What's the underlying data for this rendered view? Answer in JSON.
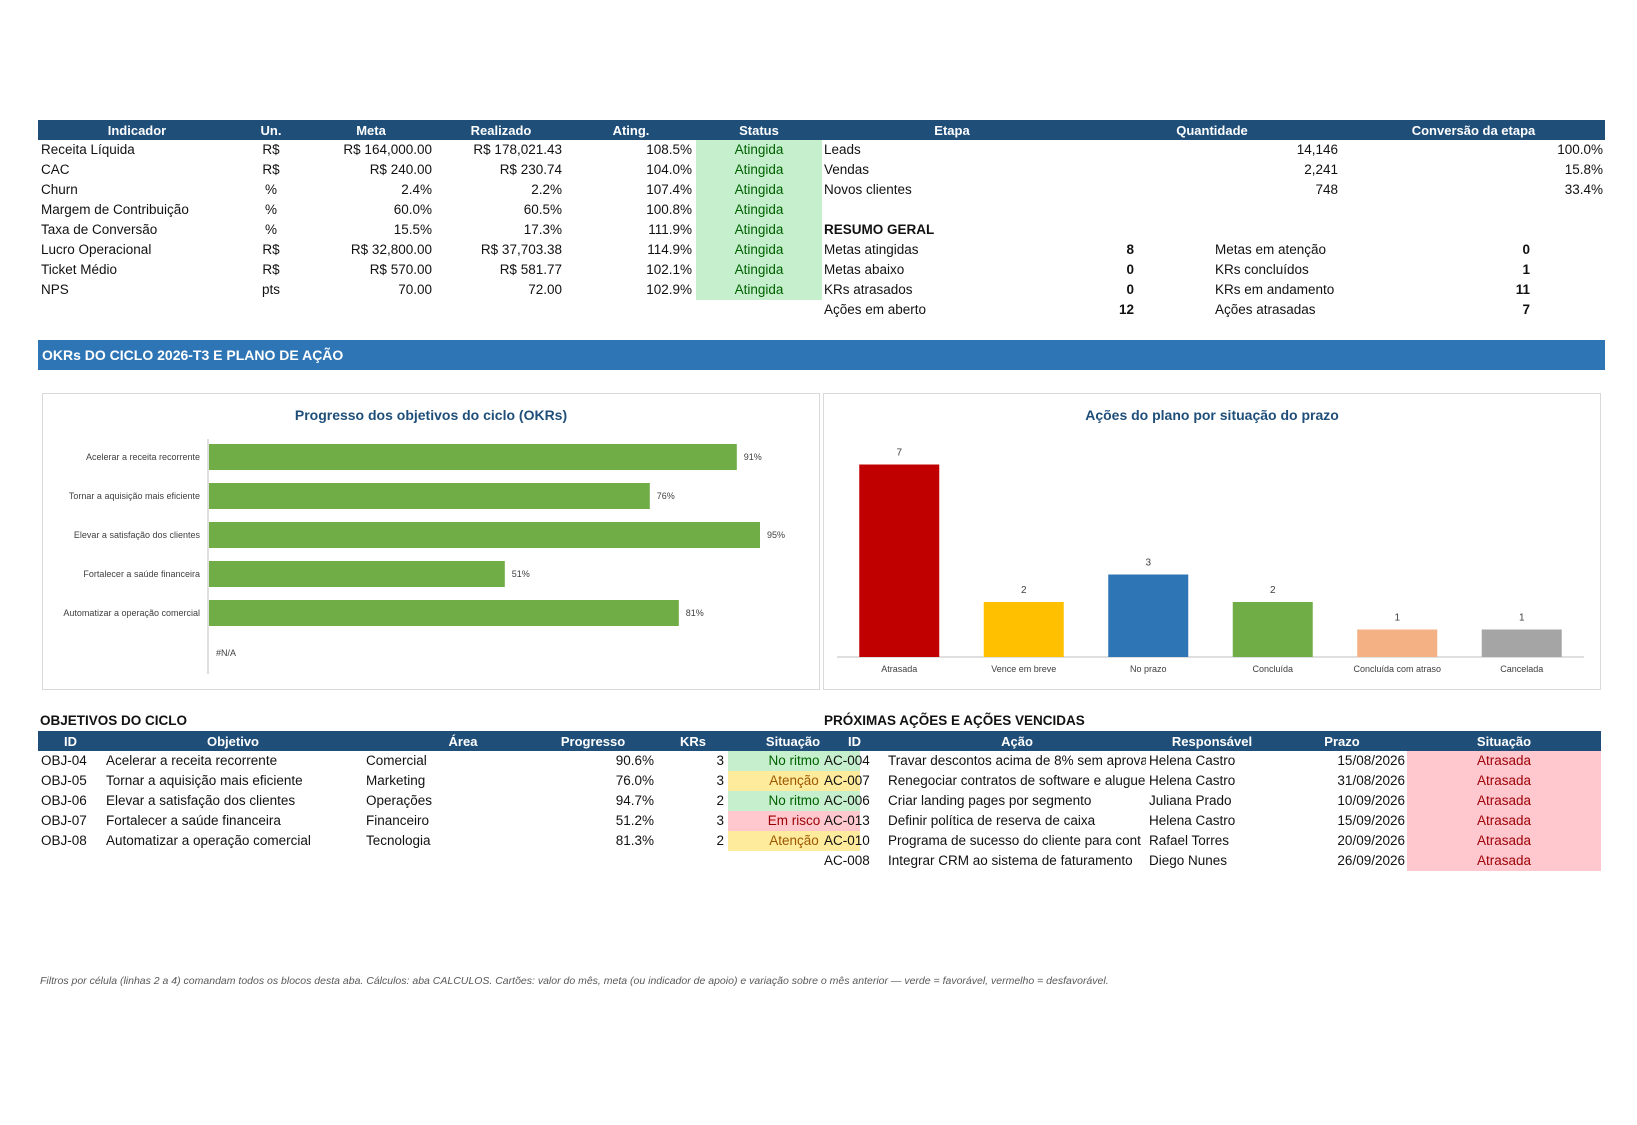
{
  "kpi_table": {
    "headers": [
      "Indicador",
      "Un.",
      "Meta",
      "Realizado",
      "Ating.",
      "Status"
    ],
    "rows": [
      {
        "indicador": "Receita Líquida",
        "un": "R$",
        "meta": "R$ 164,000.00",
        "realizado": "R$ 178,021.43",
        "ating": "108.5%",
        "status": "Atingida"
      },
      {
        "indicador": "CAC",
        "un": "R$",
        "meta": "R$ 240.00",
        "realizado": "R$ 230.74",
        "ating": "104.0%",
        "status": "Atingida"
      },
      {
        "indicador": "Churn",
        "un": "%",
        "meta": "2.4%",
        "realizado": "2.2%",
        "ating": "107.4%",
        "status": "Atingida"
      },
      {
        "indicador": "Margem de Contribuição",
        "un": "%",
        "meta": "60.0%",
        "realizado": "60.5%",
        "ating": "100.8%",
        "status": "Atingida"
      },
      {
        "indicador": "Taxa de Conversão",
        "un": "%",
        "meta": "15.5%",
        "realizado": "17.3%",
        "ating": "111.9%",
        "status": "Atingida"
      },
      {
        "indicador": "Lucro Operacional",
        "un": "R$",
        "meta": "R$ 32,800.00",
        "realizado": "R$ 37,703.38",
        "ating": "114.9%",
        "status": "Atingida"
      },
      {
        "indicador": "Ticket Médio",
        "un": "R$",
        "meta": "R$ 570.00",
        "realizado": "R$ 581.77",
        "ating": "102.1%",
        "status": "Atingida"
      },
      {
        "indicador": "NPS",
        "un": "pts",
        "meta": "70.00",
        "realizado": "72.00",
        "ating": "102.9%",
        "status": "Atingida"
      }
    ]
  },
  "funnel": {
    "headers": [
      "Etapa",
      "Quantidade",
      "Conversão da etapa"
    ],
    "rows": [
      {
        "etapa": "Leads",
        "quantidade": "14,146",
        "conversao": "100.0%"
      },
      {
        "etapa": "Vendas",
        "quantidade": "2,241",
        "conversao": "15.8%"
      },
      {
        "etapa": "Novos clientes",
        "quantidade": "748",
        "conversao": "33.4%"
      }
    ]
  },
  "summary": {
    "title": "RESUMO GERAL",
    "left": [
      {
        "label": "Metas atingidas",
        "value": "8"
      },
      {
        "label": "Metas abaixo",
        "value": "0"
      },
      {
        "label": "KRs atrasados",
        "value": "0"
      },
      {
        "label": "Ações em aberto",
        "value": "12"
      }
    ],
    "right": [
      {
        "label": "Metas em atenção",
        "value": "0"
      },
      {
        "label": "KRs concluídos",
        "value": "1"
      },
      {
        "label": "KRs em andamento",
        "value": "11"
      },
      {
        "label": "Ações atrasadas",
        "value": "7"
      }
    ]
  },
  "band_title": "OKRs DO CICLO 2026-T3 E PLANO DE AÇÃO",
  "colors": {
    "header_blue": "#1f4e79",
    "band_blue": "#2e75b6",
    "bar_green": "#70ad47",
    "atrasada": "#c00000",
    "vence": "#ffc000",
    "no_prazo": "#2e75b6",
    "concluida": "#70ad47",
    "concluida_atraso": "#f4b183",
    "cancelada": "#a5a5a5"
  },
  "chart_data": [
    {
      "type": "bar",
      "orientation": "horizontal",
      "title": "Progresso dos objetivos do ciclo (OKRs)",
      "categories": [
        "Acelerar a receita recorrente",
        "Tornar a aquisição mais eficiente",
        "Elevar a satisfação dos clientes",
        "Fortalecer a saúde financeira",
        "Automatizar a operação comercial",
        "#N/A"
      ],
      "values": [
        91,
        76,
        95,
        51,
        81,
        null
      ],
      "value_labels": [
        "91%",
        "76%",
        "95%",
        "51%",
        "81%",
        ""
      ],
      "xlim": [
        0,
        100
      ],
      "grid": false
    },
    {
      "type": "bar",
      "title": "Ações do plano por situação do prazo",
      "categories": [
        "Atrasada",
        "Vence em breve",
        "No prazo",
        "Concluída",
        "Concluída com atraso",
        "Cancelada"
      ],
      "values": [
        7,
        2,
        3,
        2,
        1,
        1
      ],
      "colors": [
        "#c00000",
        "#ffc000",
        "#2e75b6",
        "#70ad47",
        "#f4b183",
        "#a5a5a5"
      ],
      "ylim": [
        0,
        8
      ],
      "grid": false
    }
  ],
  "objectives": {
    "title": "OBJETIVOS DO CICLO",
    "headers": [
      "ID",
      "Objetivo",
      "Área",
      "Progresso",
      "KRs",
      "Situação"
    ],
    "rows": [
      {
        "id": "OBJ-04",
        "objetivo": "Acelerar a receita recorrente",
        "area": "Comercial",
        "progresso": "90.6%",
        "krs": "3",
        "situacao": "No ritmo",
        "tone": "green"
      },
      {
        "id": "OBJ-05",
        "objetivo": "Tornar a aquisição mais eficiente",
        "area": "Marketing",
        "progresso": "76.0%",
        "krs": "3",
        "situacao": "Atenção",
        "tone": "yellow"
      },
      {
        "id": "OBJ-06",
        "objetivo": "Elevar a satisfação dos clientes",
        "area": "Operações",
        "progresso": "94.7%",
        "krs": "2",
        "situacao": "No ritmo",
        "tone": "green"
      },
      {
        "id": "OBJ-07",
        "objetivo": "Fortalecer a saúde financeira",
        "area": "Financeiro",
        "progresso": "51.2%",
        "krs": "3",
        "situacao": "Em risco",
        "tone": "red"
      },
      {
        "id": "OBJ-08",
        "objetivo": "Automatizar a operação comercial",
        "area": "Tecnologia",
        "progresso": "81.3%",
        "krs": "2",
        "situacao": "Atenção",
        "tone": "yellow"
      }
    ]
  },
  "actions": {
    "title": "PRÓXIMAS AÇÕES E AÇÕES VENCIDAS",
    "headers": [
      "ID",
      "Ação",
      "Responsável",
      "Prazo",
      "Situação"
    ],
    "rows": [
      {
        "id": "AC-004",
        "acao": "Travar descontos acima de 8% sem aprova",
        "responsavel": "Helena Castro",
        "prazo": "15/08/2026",
        "situacao": "Atrasada"
      },
      {
        "id": "AC-007",
        "acao": "Renegociar contratos de software e alugue",
        "responsavel": "Helena Castro",
        "prazo": "31/08/2026",
        "situacao": "Atrasada"
      },
      {
        "id": "AC-006",
        "acao": "Criar landing pages por segmento",
        "responsavel": "Juliana Prado",
        "prazo": "10/09/2026",
        "situacao": "Atrasada"
      },
      {
        "id": "AC-013",
        "acao": "Definir política de reserva de caixa",
        "responsavel": "Helena Castro",
        "prazo": "15/09/2026",
        "situacao": "Atrasada"
      },
      {
        "id": "AC-010",
        "acao": "Programa de sucesso do cliente para cont",
        "responsavel": "Rafael Torres",
        "prazo": "20/09/2026",
        "situacao": "Atrasada"
      },
      {
        "id": "AC-008",
        "acao": "Integrar CRM ao sistema de faturamento",
        "responsavel": "Diego Nunes",
        "prazo": "26/09/2026",
        "situacao": "Atrasada"
      }
    ]
  },
  "footnote": "Filtros por célula (linhas 2 a 4) comandam todos os blocos desta aba. Cálculos: aba CALCULOS. Cartões: valor do mês, meta (ou indicador de apoio) e variação sobre o mês anterior — verde = favorável, vermelho = desfavorável."
}
